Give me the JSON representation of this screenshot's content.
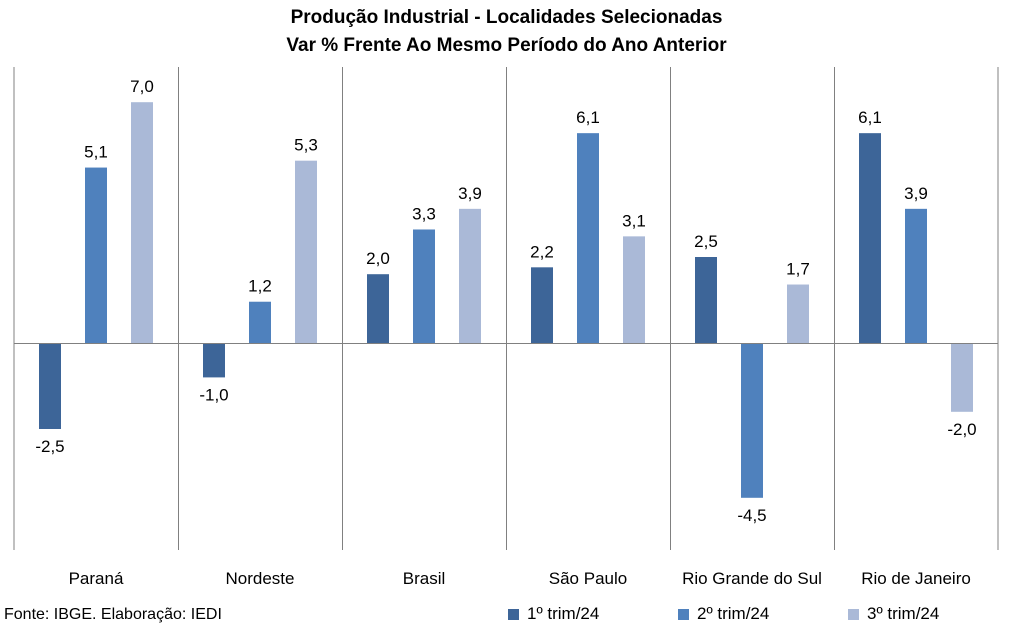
{
  "title_line1": "Produção Industrial - Localidades Selecionadas",
  "title_line2": "Var % Frente Ao Mesmo Período do Ano Anterior",
  "source": "Fonte: IBGE. Elaboração: IEDI",
  "chart_data": {
    "type": "bar",
    "title": "Produção Industrial - Localidades Selecionadas / Var % Frente Ao Mesmo Período do Ano Anterior",
    "categories": [
      "Paraná",
      "Nordeste",
      "Brasil",
      "São Paulo",
      "Rio Grande do Sul",
      "Rio de Janeiro"
    ],
    "series": [
      {
        "name": "1º trim/24",
        "color": "#3d6598",
        "values": [
          -2.5,
          -1.0,
          2.0,
          2.2,
          2.5,
          6.1
        ],
        "labels": [
          "-2,5",
          "-1,0",
          "2,0",
          "2,2",
          "2,5",
          "6,1"
        ]
      },
      {
        "name": "2º trim/24",
        "color": "#4f81bd",
        "values": [
          5.1,
          1.2,
          3.3,
          6.1,
          -4.5,
          3.9
        ],
        "labels": [
          "5,1",
          "1,2",
          "3,3",
          "6,1",
          "-4,5",
          "3,9"
        ]
      },
      {
        "name": "3º trim/24",
        "color": "#aab9d7",
        "values": [
          7.0,
          5.3,
          3.9,
          3.1,
          1.7,
          -2.0
        ],
        "labels": [
          "7,0",
          "5,3",
          "3,9",
          "3,1",
          "1,7",
          "-2,0"
        ]
      }
    ],
    "xlabel": "",
    "ylabel": "",
    "grid": false,
    "legend_position": "bottom-right"
  }
}
